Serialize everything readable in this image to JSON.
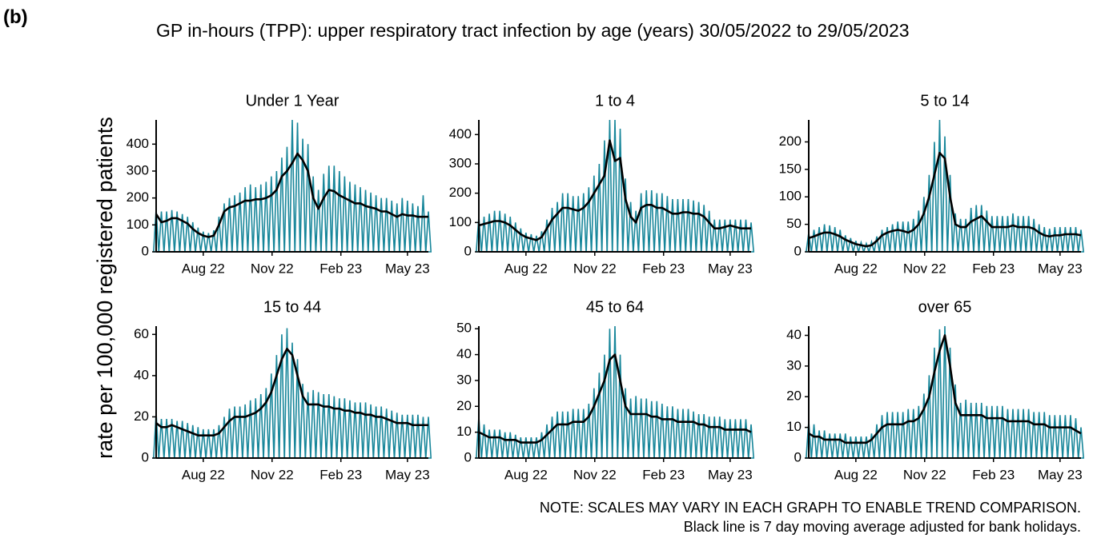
{
  "label": "(b)",
  "chart_data": {
    "type": "line",
    "title": "GP in-hours (TPP): upper respiratory tract infection by age (years) 30/05/2022 to 29/05/2023",
    "y_label": "rate per 100,000 registered patients",
    "notes": [
      "NOTE: SCALES MAY VARY IN EACH GRAPH TO ENABLE TREND COMPARISON.",
      "Black line is 7 day moving average adjusted for bank holidays."
    ],
    "x": [
      0,
      7,
      14,
      21,
      28,
      35,
      42,
      49,
      56,
      63,
      70,
      77,
      84,
      91,
      98,
      105,
      112,
      119,
      126,
      133,
      140,
      147,
      154,
      161,
      168,
      175,
      182,
      189,
      196,
      203,
      210,
      217,
      224,
      231,
      238,
      245,
      252,
      259,
      266,
      273,
      280,
      287,
      294,
      301,
      308,
      315,
      322,
      329,
      336,
      343,
      350,
      357,
      364
    ],
    "xlim": [
      0,
      364
    ],
    "xticks": [
      {
        "value": 63,
        "label": "Aug 22"
      },
      {
        "value": 155,
        "label": "Nov 22"
      },
      {
        "value": 247,
        "label": "Feb 23"
      },
      {
        "value": 336,
        "label": "May 23"
      }
    ],
    "panels": [
      {
        "title": "Under 1 Year",
        "ylim": [
          0,
          490
        ],
        "yticks": [
          0,
          100,
          200,
          300,
          400
        ],
        "series": [
          {
            "color": "#17869a",
            "values": [
              160,
              150,
              150,
              155,
              150,
              140,
              130,
              110,
              90,
              75,
              70,
              80,
              130,
              180,
              200,
              210,
              220,
              240,
              250,
              240,
              250,
              260,
              280,
              300,
              350,
              390,
              490,
              480,
              420,
              400,
              280,
              230,
              290,
              320,
              320,
              300,
              280,
              260,
              250,
              240,
              230,
              220,
              210,
              200,
              200,
              190,
              180,
              200,
              190,
              180,
              170,
              210,
              150
            ]
          },
          {
            "color": "#000000",
            "values": [
              140,
              110,
              115,
              125,
              125,
              115,
              105,
              85,
              70,
              60,
              55,
              60,
              100,
              150,
              165,
              170,
              180,
              190,
              190,
              195,
              195,
              200,
              210,
              230,
              280,
              300,
              330,
              365,
              340,
              300,
              200,
              160,
              200,
              230,
              225,
              210,
              200,
              190,
              180,
              180,
              170,
              165,
              160,
              150,
              150,
              140,
              130,
              140,
              135,
              135,
              130,
              130,
              130
            ]
          }
        ]
      },
      {
        "title": "1 to 4",
        "ylim": [
          0,
          450
        ],
        "yticks": [
          0,
          100,
          200,
          300,
          400
        ],
        "series": [
          {
            "color": "#17869a",
            "values": [
              120,
              120,
              130,
              140,
              140,
              130,
              120,
              100,
              80,
              65,
              60,
              55,
              70,
              110,
              150,
              170,
              200,
              200,
              190,
              190,
              200,
              220,
              260,
              300,
              380,
              450,
              450,
              420,
              250,
              170,
              140,
              200,
              210,
              210,
              200,
              200,
              190,
              180,
              180,
              180,
              180,
              175,
              170,
              160,
              140,
              110,
              110,
              110,
              110,
              110,
              110,
              110,
              100
            ]
          },
          {
            "color": "#000000",
            "values": [
              90,
              95,
              100,
              105,
              105,
              100,
              90,
              75,
              60,
              50,
              45,
              40,
              50,
              80,
              110,
              130,
              150,
              150,
              145,
              140,
              150,
              170,
              200,
              230,
              260,
              380,
              310,
              320,
              180,
              120,
              100,
              150,
              160,
              160,
              150,
              150,
              140,
              130,
              130,
              135,
              135,
              130,
              130,
              120,
              100,
              80,
              80,
              85,
              90,
              85,
              80,
              80,
              80
            ]
          }
        ]
      },
      {
        "title": "5 to 14",
        "ylim": [
          0,
          240
        ],
        "yticks": [
          0,
          50,
          100,
          150,
          200
        ],
        "series": [
          {
            "color": "#17869a",
            "values": [
              35,
              40,
              45,
              50,
              48,
              45,
              40,
              30,
              25,
              20,
              17,
              15,
              18,
              28,
              40,
              45,
              50,
              55,
              55,
              55,
              60,
              75,
              100,
              140,
              200,
              240,
              210,
              140,
              70,
              60,
              60,
              80,
              85,
              85,
              75,
              65,
              65,
              65,
              65,
              70,
              65,
              65,
              65,
              60,
              50,
              45,
              42,
              45,
              45,
              45,
              45,
              45,
              40
            ]
          },
          {
            "color": "#000000",
            "values": [
              25,
              28,
              32,
              35,
              35,
              32,
              28,
              22,
              18,
              14,
              12,
              10,
              12,
              20,
              30,
              35,
              38,
              40,
              38,
              35,
              40,
              50,
              70,
              100,
              140,
              180,
              170,
              100,
              50,
              45,
              45,
              55,
              60,
              65,
              55,
              45,
              45,
              45,
              45,
              48,
              45,
              45,
              45,
              42,
              35,
              30,
              28,
              30,
              30,
              32,
              32,
              32,
              30
            ]
          }
        ]
      },
      {
        "title": "15 to 44",
        "ylim": [
          0,
          64
        ],
        "yticks": [
          0,
          20,
          40,
          60
        ],
        "series": [
          {
            "color": "#17869a",
            "values": [
              22,
              19,
              19,
              19,
              18,
              18,
              17,
              16,
              15,
              14,
              14,
              14,
              16,
              20,
              24,
              25,
              25,
              26,
              28,
              29,
              31,
              34,
              41,
              50,
              60,
              63,
              56,
              48,
              36,
              32,
              33,
              32,
              31,
              31,
              30,
              29,
              29,
              28,
              27,
              27,
              27,
              26,
              25,
              25,
              24,
              23,
              22,
              21,
              21,
              21,
              21,
              20,
              20
            ]
          },
          {
            "color": "#000000",
            "values": [
              17,
              15,
              15,
              16,
              15,
              14,
              13,
              12,
              11,
              11,
              11,
              11,
              12,
              15,
              18,
              20,
              20,
              20,
              21,
              22,
              24,
              27,
              32,
              40,
              48,
              53,
              50,
              40,
              30,
              26,
              26,
              26,
              25,
              25,
              24,
              24,
              23,
              23,
              22,
              22,
              21,
              21,
              20,
              20,
              19,
              18,
              17,
              17,
              17,
              16,
              16,
              16,
              16
            ]
          }
        ]
      },
      {
        "title": "45 to 64",
        "ylim": [
          0,
          51
        ],
        "yticks": [
          0,
          10,
          20,
          30,
          40,
          50
        ],
        "series": [
          {
            "color": "#17869a",
            "values": [
              16,
              13,
              11,
              11,
              11,
              10,
              10,
              9,
              8,
              8,
              8,
              8,
              10,
              13,
              16,
              18,
              18,
              18,
              19,
              19,
              19,
              21,
              27,
              33,
              40,
              50,
              51,
              40,
              27,
              23,
              24,
              23,
              23,
              22,
              22,
              21,
              20,
              20,
              19,
              19,
              19,
              18,
              17,
              17,
              16,
              16,
              16,
              15,
              15,
              15,
              15,
              15,
              13
            ]
          },
          {
            "color": "#000000",
            "values": [
              10,
              9,
              8,
              8,
              8,
              7,
              7,
              7,
              6,
              6,
              6,
              6,
              7,
              9,
              11,
              13,
              13,
              13,
              14,
              14,
              14,
              16,
              20,
              25,
              30,
              38,
              40,
              30,
              20,
              17,
              17,
              17,
              17,
              16,
              16,
              15,
              15,
              15,
              14,
              14,
              14,
              14,
              13,
              13,
              12,
              12,
              12,
              11,
              11,
              11,
              11,
              11,
              10
            ]
          }
        ]
      },
      {
        "title": "over 65",
        "ylim": [
          0,
          43
        ],
        "yticks": [
          0,
          10,
          20,
          30,
          40
        ],
        "series": [
          {
            "color": "#17869a",
            "values": [
              12,
              11,
              9,
              9,
              8,
              8,
              8,
              8,
              7,
              7,
              7,
              7,
              8,
              11,
              14,
              15,
              15,
              15,
              15,
              16,
              16,
              17,
              21,
              27,
              36,
              42,
              43,
              36,
              24,
              18,
              19,
              18,
              18,
              18,
              17,
              17,
              17,
              17,
              16,
              16,
              16,
              16,
              16,
              15,
              15,
              15,
              14,
              14,
              14,
              14,
              14,
              13,
              10
            ]
          },
          {
            "color": "#000000",
            "values": [
              8,
              7,
              7,
              6,
              6,
              6,
              6,
              5,
              5,
              5,
              5,
              5,
              6,
              8,
              10,
              11,
              11,
              11,
              11,
              12,
              12,
              13,
              16,
              20,
              28,
              35,
              40,
              30,
              18,
              14,
              14,
              14,
              14,
              14,
              13,
              13,
              13,
              13,
              12,
              12,
              12,
              12,
              12,
              11,
              11,
              11,
              10,
              10,
              10,
              10,
              10,
              9,
              8
            ]
          }
        ]
      }
    ]
  }
}
